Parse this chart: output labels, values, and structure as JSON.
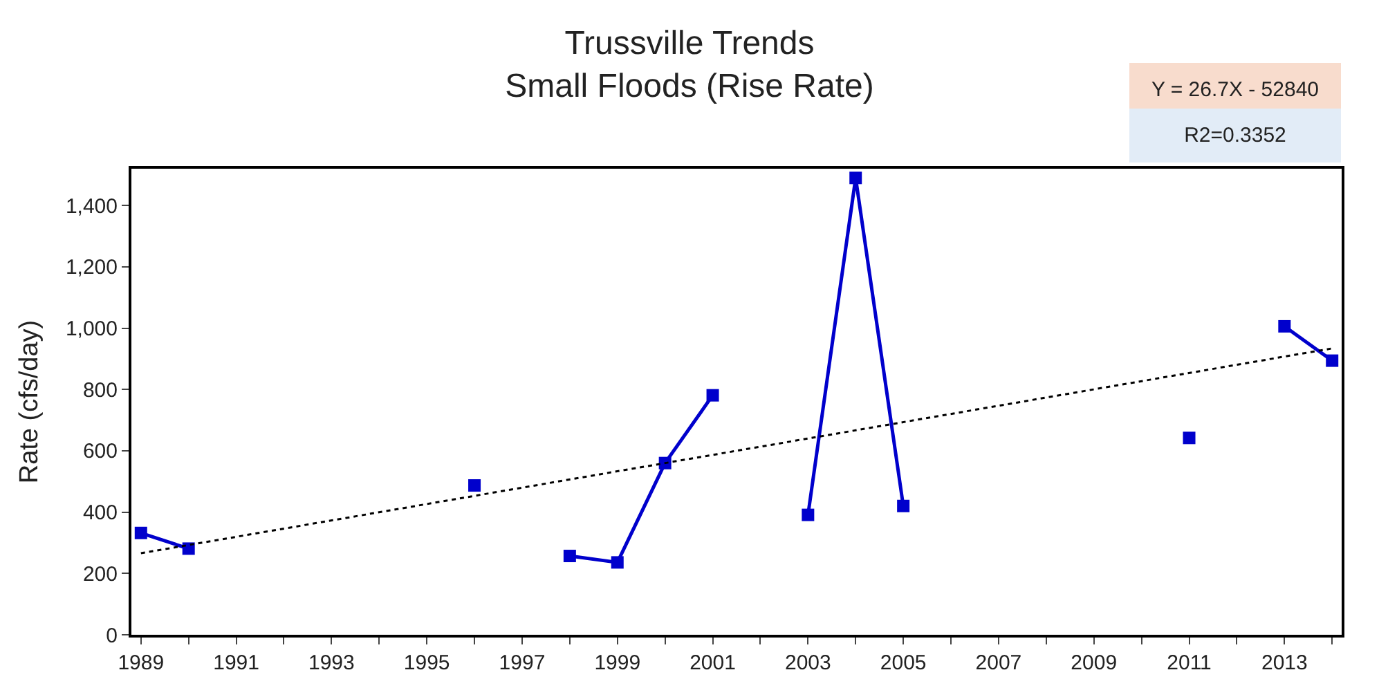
{
  "chart_data": {
    "type": "line",
    "title": "Trussville Trends\nSmall Floods (Rise Rate)",
    "ylabel": "Rate (cfs/day)",
    "x": [
      1989,
      1990,
      1991,
      1996,
      1997,
      1998,
      1999,
      2000,
      2001,
      2002,
      2003,
      2004,
      2005,
      2006,
      2011,
      2012,
      2013,
      2014
    ],
    "series": [
      {
        "color": "#0000cc",
        "values": [
          332,
          281,
          null,
          487,
          null,
          257,
          236,
          560,
          781,
          null,
          391,
          1490,
          420,
          null,
          642,
          null,
          1006,
          894
        ],
        "marker": "square",
        "line_style": "solid"
      },
      {
        "type": "line",
        "color": "#000000",
        "x": [
          1989,
          2014
        ],
        "values": [
          266,
          934
        ],
        "marker": "none",
        "line_style": "dotted"
      }
    ],
    "xlim": [
      1988.8,
      2014.2
    ],
    "ylim": [
      0,
      1520
    ],
    "xticks": [
      1989,
      {
        "value": 1990,
        "label": null
      },
      1991,
      {
        "value": 1992,
        "label": null
      },
      1993,
      {
        "value": 1994,
        "label": null
      },
      1995,
      {
        "value": 1996,
        "label": null
      },
      1997,
      {
        "value": 1998,
        "label": null
      },
      1999,
      {
        "value": 2000,
        "label": null
      },
      2001,
      {
        "value": 2002,
        "label": null
      },
      2003,
      {
        "value": 2004,
        "label": null
      },
      2005,
      {
        "value": 2006,
        "label": null
      },
      2007,
      {
        "value": 2008,
        "label": null
      },
      2009,
      {
        "value": 2010,
        "label": null
      },
      2011,
      {
        "value": 2012,
        "label": null
      },
      2013,
      {
        "value": 2014,
        "label": null
      }
    ],
    "yticks": [
      0,
      200,
      400,
      600,
      800,
      {
        "value": 1000,
        "label": "1,000"
      },
      {
        "value": 1200,
        "label": "1,200"
      },
      {
        "value": 1400,
        "label": "1,400"
      }
    ],
    "annotations": [
      "Y = 26.7X - 52840",
      "R2=0.3352"
    ]
  }
}
